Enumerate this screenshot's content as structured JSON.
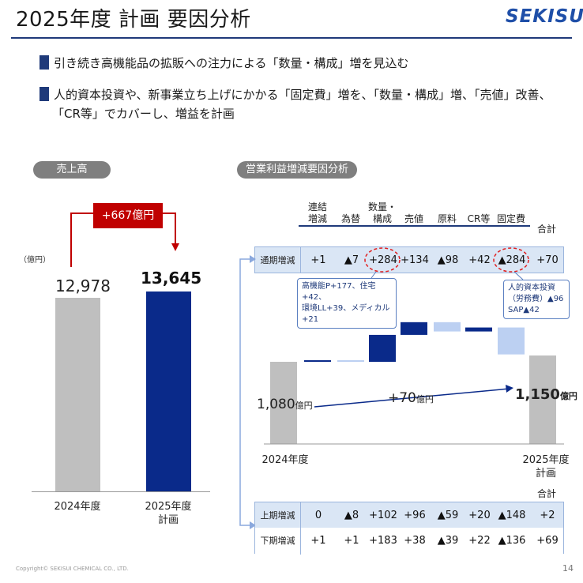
{
  "header": {
    "title": "2025年度  計画  要因分析",
    "logo": "SEKISUI"
  },
  "bullets": [
    "引き続き高機能品の拡販への注力による「数量・構成」増を見込む",
    "人的資本投資や、新事業立ち上げにかかる「固定費」増を、「数量・構成」増、「売値」改善、",
    "「CR等」でカバーし、増益を計画"
  ],
  "sales": {
    "pill": "売上高",
    "unit": "（億円）",
    "delta": "+667億円",
    "bars": [
      {
        "label": "2024年度",
        "label2": "",
        "value_label": "12,978",
        "value": 12978,
        "color": "#bfbfbf"
      },
      {
        "label": "2025年度",
        "label2": "計画",
        "value_label": "13,645",
        "value": 13645,
        "color": "#0a2a8a"
      }
    ]
  },
  "profit": {
    "pill": "営業利益増減要因分析",
    "headers": [
      {
        "l1": "連結",
        "l2": "増減"
      },
      {
        "l1": "",
        "l2": "為替"
      },
      {
        "l1": "数量・",
        "l2": "構成"
      },
      {
        "l1": "",
        "l2": "売値"
      },
      {
        "l1": "",
        "l2": "原料"
      },
      {
        "l1": "",
        "l2": "CR等"
      },
      {
        "l1": "",
        "l2": "固定費"
      },
      {
        "l1": "",
        "l2": "合計"
      }
    ],
    "full_year": {
      "label": "通期増減",
      "values": [
        "+1",
        "▲7",
        "+284",
        "+134",
        "▲98",
        "+42",
        "▲284",
        "+70"
      ]
    },
    "callout_left": [
      "高機能P+177、住宅+42、",
      "環境LL+39、メディカル+21"
    ],
    "callout_right": [
      "人的資本投資",
      "（労務費）▲96",
      "SAP▲42"
    ],
    "waterfall": {
      "start_value": "1,080",
      "start_unit": "億円",
      "end_value": "1,150",
      "end_unit": "億円",
      "mid_value": "+70",
      "mid_unit": "億円",
      "start_label": "2024年度",
      "end_label1": "2025年度",
      "end_label2": "計画",
      "steps": [
        1,
        -7,
        284,
        134,
        -98,
        42,
        -284
      ],
      "step_colors": [
        "#0a2a8a",
        "#bcd0f2",
        "#0a2a8a",
        "#0a2a8a",
        "#bcd0f2",
        "#0a2a8a",
        "#bcd0f2"
      ]
    },
    "half_total_header": "合計",
    "first_half": {
      "label": "上期増減",
      "values": [
        "0",
        "▲8",
        "+102",
        "+96",
        "▲59",
        "+20",
        "▲148",
        "+2"
      ]
    },
    "second_half": {
      "label": "下期増減",
      "values": [
        "+1",
        "+1",
        "+183",
        "+38",
        "▲39",
        "+22",
        "▲136",
        "+69"
      ]
    }
  },
  "footer": {
    "copyright": "Copyright© SEKISUI CHEMICAL CO., LTD.",
    "page": "14"
  }
}
